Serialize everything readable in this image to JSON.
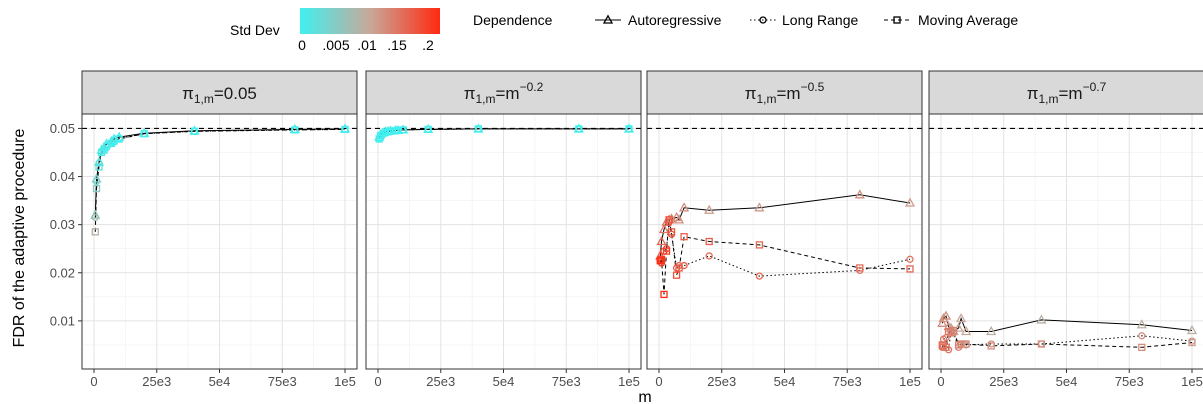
{
  "chart_data": {
    "type": "line",
    "xlabel": "m",
    "ylabel": "FDR of the adaptive procedure",
    "xlim": [
      0,
      100000
    ],
    "ylim": [
      0,
      0.053
    ],
    "x_ticks": [
      0,
      25000,
      50000,
      75000,
      100000
    ],
    "x_tick_labels": [
      "0",
      "25e3",
      "5e4",
      "75e3",
      "1e5"
    ],
    "y_ticks": [
      0.01,
      0.02,
      0.03,
      0.04,
      0.05
    ],
    "y_tick_labels": [
      "0.01",
      "0.02",
      "0.03",
      "0.04",
      "0.05"
    ],
    "reference_line": 0.05,
    "grid": true,
    "legend": {
      "colorbar_title": "Std Dev",
      "colorbar_labels": [
        "0",
        ".005",
        ".01",
        ".15",
        ".2"
      ],
      "colorbar_colors": [
        "#40f0f0",
        "#c8a89a",
        "#ff2a10"
      ],
      "shape_title": "Dependence",
      "placement": "top"
    },
    "color_scale": {
      "low": "#40f0f0",
      "mid": "#c8a89a",
      "high": "#ff2a10",
      "max": 0.2
    },
    "facets": [
      {
        "label_base": "π",
        "label_sub": "1,m",
        "label_rest": "=0.05",
        "label_sup": "",
        "series": [
          {
            "name": "Autoregressive",
            "style": "solid",
            "marker": "triangle",
            "x": [
              500,
              1000,
              2000,
              3000,
              4000,
              5000,
              7000,
              8000,
              10000,
              20000,
              40000,
              80000,
              100000
            ],
            "y": [
              0.032,
              0.0395,
              0.043,
              0.0455,
              0.046,
              0.0468,
              0.0473,
              0.0478,
              0.0482,
              0.049,
              0.0495,
              0.0498,
              0.0499
            ],
            "sd": [
              0.06,
              0.04,
              0.02,
              0.01,
              0.008,
              0.006,
              0.005,
              0.004,
              0.003,
              0.002,
              0.001,
              0.001,
              0.001
            ]
          },
          {
            "name": "Long Range",
            "style": "dotted",
            "marker": "circle",
            "x": [
              500,
              1000,
              2000,
              3000,
              4000,
              5000,
              7000,
              8000,
              10000,
              20000,
              40000,
              80000,
              100000
            ],
            "y": [
              0.0315,
              0.039,
              0.0428,
              0.0452,
              0.0458,
              0.0465,
              0.047,
              0.0475,
              0.0479,
              0.0489,
              0.0494,
              0.0497,
              0.0498
            ],
            "sd": [
              0.07,
              0.04,
              0.02,
              0.01,
              0.008,
              0.006,
              0.005,
              0.004,
              0.003,
              0.002,
              0.001,
              0.001,
              0.001
            ]
          },
          {
            "name": "Moving Average",
            "style": "dashed",
            "marker": "square",
            "x": [
              500,
              1000,
              2000,
              3000,
              4000,
              5000,
              7000,
              8000,
              10000,
              20000,
              40000,
              80000,
              100000
            ],
            "y": [
              0.0285,
              0.0375,
              0.042,
              0.045,
              0.0455,
              0.0463,
              0.0469,
              0.0474,
              0.0478,
              0.0489,
              0.0494,
              0.0497,
              0.0498
            ],
            "sd": [
              0.09,
              0.05,
              0.02,
              0.01,
              0.008,
              0.006,
              0.005,
              0.004,
              0.003,
              0.002,
              0.001,
              0.001,
              0.001
            ]
          }
        ]
      },
      {
        "label_base": "π",
        "label_sub": "1,m",
        "label_rest": "=m",
        "label_sup": "−0.2",
        "series": [
          {
            "name": "Autoregressive",
            "style": "solid",
            "marker": "triangle",
            "x": [
              500,
              1000,
              2000,
              3000,
              4000,
              5000,
              7000,
              8000,
              10000,
              20000,
              40000,
              80000,
              100000
            ],
            "y": [
              0.0482,
              0.0487,
              0.0491,
              0.0493,
              0.0494,
              0.0495,
              0.0496,
              0.0496,
              0.0497,
              0.0498,
              0.0499,
              0.0499,
              0.0499
            ],
            "sd": [
              0.003,
              0.002,
              0.002,
              0.001,
              0.001,
              0.001,
              0.001,
              0.001,
              0.001,
              0.001,
              0.001,
              0.001,
              0.001
            ]
          },
          {
            "name": "Long Range",
            "style": "dotted",
            "marker": "circle",
            "x": [
              500,
              1000,
              2000,
              3000,
              4000,
              5000,
              7000,
              8000,
              10000,
              20000,
              40000,
              80000,
              100000
            ],
            "y": [
              0.048,
              0.0486,
              0.049,
              0.0492,
              0.0493,
              0.0494,
              0.0496,
              0.0496,
              0.0497,
              0.0498,
              0.0499,
              0.0499,
              0.0499
            ],
            "sd": [
              0.003,
              0.002,
              0.002,
              0.001,
              0.001,
              0.001,
              0.001,
              0.001,
              0.001,
              0.001,
              0.001,
              0.001,
              0.001
            ]
          },
          {
            "name": "Moving Average",
            "style": "dashed",
            "marker": "square",
            "x": [
              500,
              1000,
              2000,
              3000,
              4000,
              5000,
              7000,
              8000,
              10000,
              20000,
              40000,
              80000,
              100000
            ],
            "y": [
              0.0478,
              0.0485,
              0.049,
              0.0492,
              0.0493,
              0.0494,
              0.0495,
              0.0496,
              0.0497,
              0.0498,
              0.0499,
              0.0499,
              0.0499
            ],
            "sd": [
              0.003,
              0.002,
              0.002,
              0.001,
              0.001,
              0.001,
              0.001,
              0.001,
              0.001,
              0.001,
              0.001,
              0.001,
              0.001
            ]
          }
        ]
      },
      {
        "label_base": "π",
        "label_sub": "1,m",
        "label_rest": "=m",
        "label_sup": "−0.5",
        "series": [
          {
            "name": "Autoregressive",
            "style": "solid",
            "marker": "triangle",
            "x": [
              500,
              1000,
              2000,
              3000,
              4000,
              5000,
              7000,
              8000,
              10000,
              20000,
              40000,
              80000,
              100000
            ],
            "y": [
              0.0235,
              0.0265,
              0.029,
              0.0305,
              0.031,
              0.0312,
              0.0315,
              0.031,
              0.0335,
              0.033,
              0.0335,
              0.0362,
              0.0345
            ],
            "sd": [
              0.16,
              0.15,
              0.14,
              0.14,
              0.13,
              0.13,
              0.12,
              0.12,
              0.12,
              0.11,
              0.11,
              0.12,
              0.11
            ]
          },
          {
            "name": "Long Range",
            "style": "dotted",
            "marker": "circle",
            "x": [
              500,
              1000,
              2000,
              3000,
              4000,
              5000,
              7000,
              8000,
              10000,
              20000,
              40000,
              80000,
              100000
            ],
            "y": [
              0.0225,
              0.022,
              0.0245,
              0.025,
              0.0305,
              0.028,
              0.021,
              0.0215,
              0.0215,
              0.0235,
              0.0193,
              0.0205,
              0.0228
            ],
            "sd": [
              0.2,
              0.19,
              0.18,
              0.18,
              0.17,
              0.17,
              0.16,
              0.16,
              0.16,
              0.15,
              0.15,
              0.14,
              0.14
            ]
          },
          {
            "name": "Moving Average",
            "style": "dashed",
            "marker": "square",
            "x": [
              500,
              1000,
              2000,
              3000,
              4000,
              5000,
              7000,
              8000,
              10000,
              20000,
              40000,
              80000,
              100000
            ],
            "y": [
              0.0225,
              0.0228,
              0.0155,
              0.0245,
              0.031,
              0.0285,
              0.0195,
              0.021,
              0.0275,
              0.0265,
              0.0258,
              0.021,
              0.0208
            ],
            "sd": [
              0.2,
              0.19,
              0.2,
              0.18,
              0.17,
              0.17,
              0.17,
              0.16,
              0.16,
              0.16,
              0.15,
              0.15,
              0.15
            ]
          }
        ]
      },
      {
        "label_base": "π",
        "label_sub": "1,m",
        "label_rest": "=m",
        "label_sup": "−0.7",
        "series": [
          {
            "name": "Autoregressive",
            "style": "solid",
            "marker": "triangle",
            "x": [
              500,
              1000,
              2000,
              3000,
              4000,
              5000,
              7000,
              8000,
              10000,
              20000,
              40000,
              80000,
              100000
            ],
            "y": [
              0.0095,
              0.0105,
              0.011,
              0.0088,
              0.0085,
              0.0078,
              0.0085,
              0.0105,
              0.0078,
              0.0078,
              0.0102,
              0.0092,
              0.008
            ],
            "sd": [
              0.12,
              0.12,
              0.12,
              0.11,
              0.11,
              0.1,
              0.1,
              0.1,
              0.1,
              0.09,
              0.09,
              0.09,
              0.09
            ]
          },
          {
            "name": "Long Range",
            "style": "dotted",
            "marker": "circle",
            "x": [
              500,
              1000,
              2000,
              3000,
              4000,
              5000,
              7000,
              8000,
              10000,
              20000,
              40000,
              80000,
              100000
            ],
            "y": [
              0.0045,
              0.0062,
              0.0065,
              0.004,
              0.0078,
              0.0075,
              0.0045,
              0.005,
              0.005,
              0.0052,
              0.0052,
              0.0069,
              0.0058
            ],
            "sd": [
              0.15,
              0.14,
              0.14,
              0.14,
              0.13,
              0.13,
              0.13,
              0.13,
              0.12,
              0.12,
              0.12,
              0.12,
              0.11
            ]
          },
          {
            "name": "Moving Average",
            "style": "dashed",
            "marker": "square",
            "x": [
              500,
              1000,
              2000,
              3000,
              4000,
              5000,
              7000,
              8000,
              10000,
              20000,
              40000,
              80000,
              100000
            ],
            "y": [
              0.005,
              0.0048,
              0.0045,
              0.0078,
              0.0075,
              0.008,
              0.005,
              0.0052,
              0.0052,
              0.0048,
              0.0052,
              0.0045,
              0.0055
            ],
            "sd": [
              0.15,
              0.14,
              0.14,
              0.14,
              0.13,
              0.13,
              0.13,
              0.13,
              0.12,
              0.12,
              0.12,
              0.12,
              0.11
            ]
          }
        ]
      }
    ]
  }
}
